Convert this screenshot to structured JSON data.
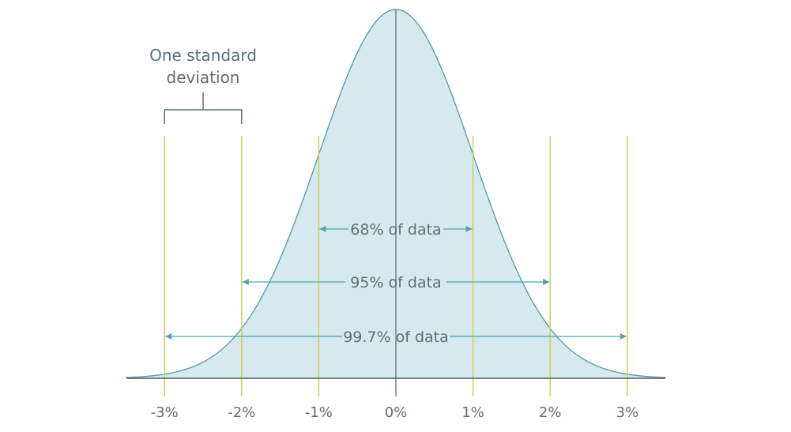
{
  "colors": {
    "curve_fill": "#d6e9ee",
    "curve_stroke": "#4f9ba6",
    "sigma_lines": "#c7d552",
    "center_line": "#5f7a80",
    "axis": "#4a5a60",
    "arrows": "#4fa3ad",
    "text": "#5f6f75",
    "bracket": "#5f6f75"
  },
  "chart_data": {
    "type": "area",
    "title": "",
    "xlabel": "",
    "ylabel": "",
    "distribution": "normal",
    "mean": 0,
    "standard_deviation": 1,
    "xlim": [
      -3.5,
      3.5
    ],
    "x_ticks": [
      -3,
      -2,
      -1,
      0,
      1,
      2,
      3
    ],
    "x_tick_labels": [
      "-3%",
      "-2%",
      "-1%",
      "0%",
      "1%",
      "2%",
      "3%"
    ],
    "sigma_lines": [
      -3,
      -2,
      -1,
      1,
      2,
      3
    ],
    "grid": false,
    "ranges": [
      {
        "from": -1,
        "to": 1,
        "label": "68% of data"
      },
      {
        "from": -2,
        "to": 2,
        "label": "95% of data"
      },
      {
        "from": -3,
        "to": 3,
        "label": "99.7% of data"
      }
    ],
    "annotation": {
      "text_lines": [
        "One standard",
        "deviation"
      ],
      "from": -3,
      "to": -2
    }
  }
}
